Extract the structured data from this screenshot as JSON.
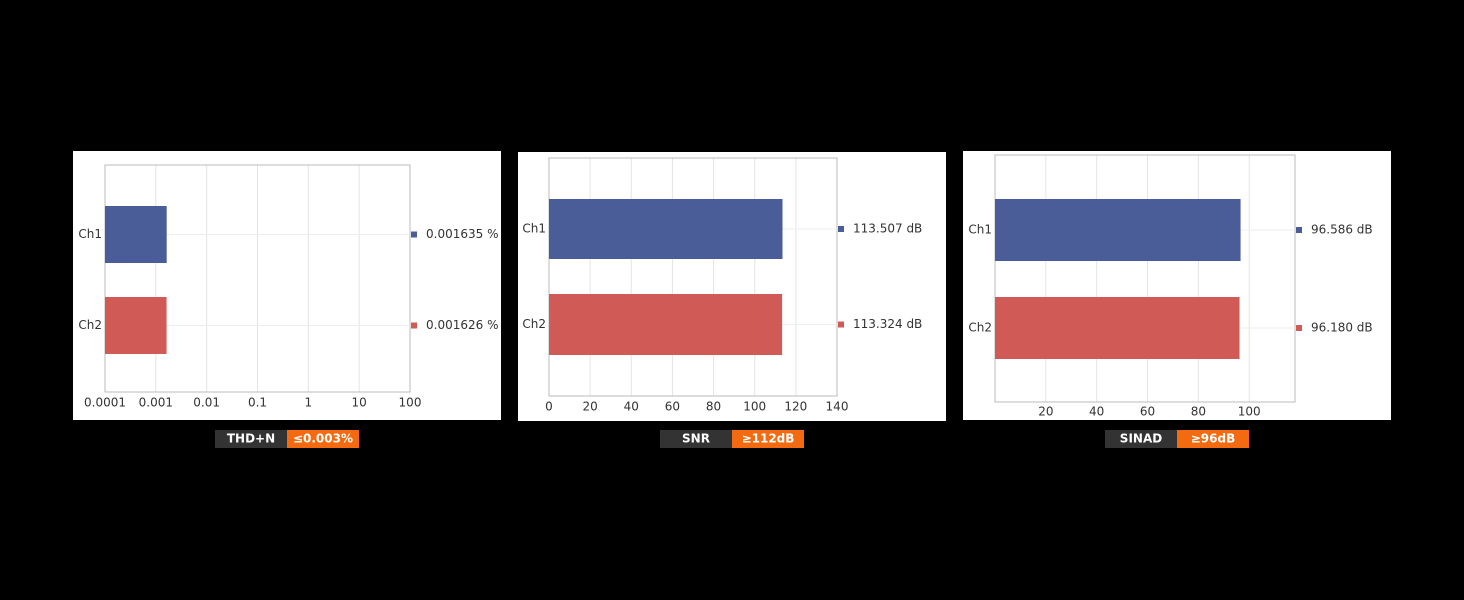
{
  "chart_data": [
    {
      "type": "bar",
      "title": "THD+N",
      "subtitle": "≤0.003%",
      "categories": [
        "Ch1",
        "Ch2"
      ],
      "values": [
        0.001635,
        0.001626
      ],
      "value_labels": [
        "0.001635 %",
        "0.001626 %"
      ],
      "colors": [
        "#4a5d98",
        "#d05a56"
      ],
      "xscale": "log",
      "xlim": [
        0.0001,
        100
      ],
      "xticks": [
        0.0001,
        0.001,
        0.01,
        0.1,
        1,
        10,
        100
      ],
      "grid": true
    },
    {
      "type": "bar",
      "title": "SNR",
      "subtitle": "≥112dB",
      "categories": [
        "Ch1",
        "Ch2"
      ],
      "values": [
        113.507,
        113.324
      ],
      "value_labels": [
        "113.507 dB",
        "113.324 dB"
      ],
      "colors": [
        "#4a5d98",
        "#d05a56"
      ],
      "xscale": "linear",
      "xlim": [
        0,
        140
      ],
      "xticks": [
        0,
        20,
        40,
        60,
        80,
        100,
        120,
        140
      ],
      "grid": true
    },
    {
      "type": "bar",
      "title": "SINAD",
      "subtitle": "≥96dB",
      "categories": [
        "Ch1",
        "Ch2"
      ],
      "values": [
        96.586,
        96.18
      ],
      "value_labels": [
        "96.586 dB",
        "96.180 dB"
      ],
      "colors": [
        "#4a5d98",
        "#d05a56"
      ],
      "xscale": "linear",
      "xlim": [
        0,
        118
      ],
      "xticks": [
        20,
        40,
        60,
        80,
        100
      ],
      "grid": true
    }
  ]
}
